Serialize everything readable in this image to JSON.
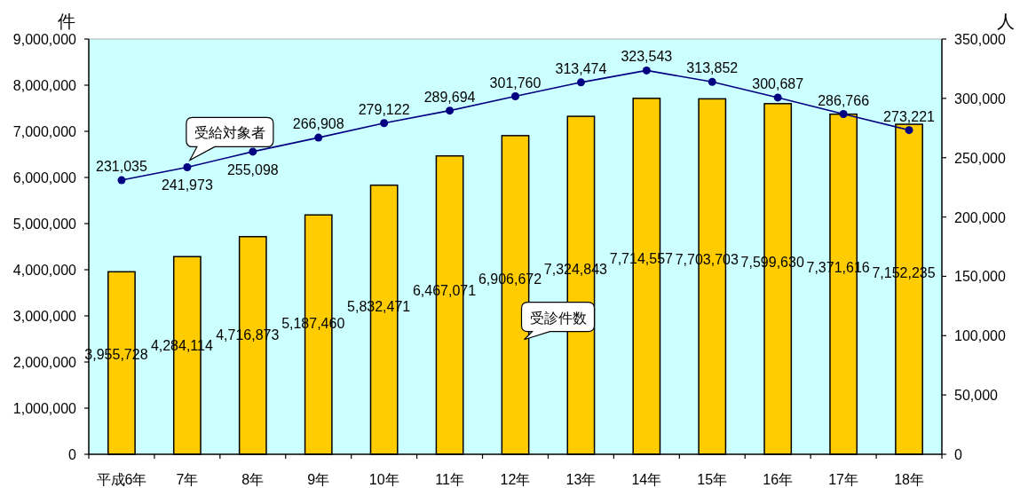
{
  "chart_data": {
    "type": "bar",
    "categories": [
      "平成6年",
      "7年",
      "8年",
      "9年",
      "10年",
      "11年",
      "12年",
      "13年",
      "14年",
      "15年",
      "16年",
      "17年",
      "18年"
    ],
    "ylabel": "件",
    "y2label": "人",
    "ylim": [
      0,
      9000000
    ],
    "yticks": [
      {
        "value": 0,
        "label": "0"
      },
      {
        "value": 1000000,
        "label": "1,000,000"
      },
      {
        "value": 2000000,
        "label": "2,000,000"
      },
      {
        "value": 3000000,
        "label": "3,000,000"
      },
      {
        "value": 4000000,
        "label": "4,000,000"
      },
      {
        "value": 5000000,
        "label": "5,000,000"
      },
      {
        "value": 6000000,
        "label": "6,000,000"
      },
      {
        "value": 7000000,
        "label": "7,000,000"
      },
      {
        "value": 8000000,
        "label": "8,000,000"
      },
      {
        "value": 9000000,
        "label": "9,000,000"
      }
    ],
    "y2lim": [
      0,
      350000
    ],
    "y2ticks": [
      {
        "value": 0,
        "label": "0"
      },
      {
        "value": 50000,
        "label": "50,000"
      },
      {
        "value": 100000,
        "label": "100,000"
      },
      {
        "value": 150000,
        "label": "150,000"
      },
      {
        "value": 200000,
        "label": "200,000"
      },
      {
        "value": 250000,
        "label": "250,000"
      },
      {
        "value": 300000,
        "label": "300,000"
      },
      {
        "value": 350000,
        "label": "350,000"
      }
    ],
    "series": [
      {
        "name": "受診件数",
        "color": "#ffcc00",
        "values": [
          3955728,
          4284114,
          4716873,
          5187460,
          5832471,
          6467071,
          6906672,
          7324843,
          7714557,
          7703703,
          7599630,
          7371616,
          7152235
        ],
        "value_labels": [
          "3,955,728",
          "4,284,114",
          "4,716,873",
          "5,187,460",
          "5,832,471",
          "6,467,071",
          "6,906,672",
          "7,324,843",
          "7,714,557",
          "7,703,703",
          "7,599,630",
          "7,371,616",
          "7,152,235"
        ]
      },
      {
        "name": "受給対象者",
        "type": "line",
        "axis": "y2",
        "color": "#000080",
        "marker": "circle",
        "values": [
          231035,
          241973,
          255098,
          266908,
          279122,
          289694,
          301760,
          313474,
          323543,
          313852,
          300687,
          286766,
          273221
        ],
        "value_labels": [
          "231,035",
          "241,973",
          "255,098",
          "266,908",
          "279,122",
          "289,694",
          "301,760",
          "313,474",
          "323,543",
          "313,852",
          "300,687",
          "286,766",
          "273,221"
        ]
      }
    ]
  }
}
